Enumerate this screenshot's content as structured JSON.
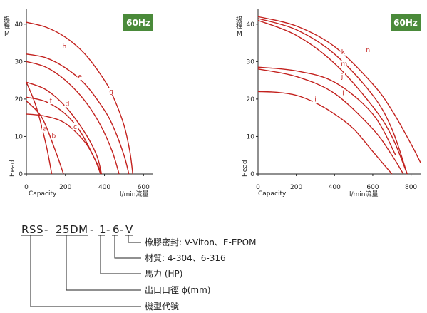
{
  "chart_data": [
    {
      "type": "line",
      "badge": "60Hz",
      "ylabel_cjk": "揚程",
      "ylabel_unit": "M",
      "ylabel": "Head",
      "xlabel": "Capacity",
      "xunit": "l/min流量",
      "xlim": [
        0,
        650
      ],
      "ylim": [
        0,
        43
      ],
      "xticks": [
        0,
        200,
        400,
        600
      ],
      "yticks": [
        0,
        10,
        20,
        30,
        40
      ],
      "series": [
        {
          "name": "h",
          "label_at": [
            195,
            33.5
          ],
          "x": [
            0,
            100,
            200,
            300,
            400,
            450,
            500,
            530,
            545
          ],
          "y": [
            40.5,
            39.2,
            36.5,
            32,
            25,
            20,
            13,
            6,
            0
          ]
        },
        {
          "name": "g",
          "label_at": [
            435,
            21.5
          ],
          "x": [
            0,
            100,
            200,
            300,
            400,
            450,
            500,
            525
          ],
          "y": [
            32,
            31,
            28.3,
            24,
            17,
            12,
            5,
            0
          ]
        },
        {
          "name": "e",
          "label_at": [
            275,
            25.5
          ],
          "x": [
            0,
            100,
            200,
            300,
            380,
            440,
            475
          ],
          "y": [
            30,
            28.5,
            25,
            19.5,
            13,
            6,
            0
          ]
        },
        {
          "name": "d",
          "label_at": [
            210,
            18.2
          ],
          "x": [
            0,
            100,
            200,
            300,
            360,
            385
          ],
          "y": [
            24.5,
            22.5,
            18,
            11,
            5,
            0
          ]
        },
        {
          "name": "f",
          "label_at": [
            125,
            19.0
          ],
          "x": [
            0,
            100,
            200,
            280,
            350,
            380
          ],
          "y": [
            20.5,
            19.3,
            16,
            11,
            4,
            0
          ]
        },
        {
          "name": "c",
          "label_at": [
            250,
            12.0
          ],
          "x": [
            0,
            100,
            200,
            300,
            360,
            385
          ],
          "y": [
            16,
            15.4,
            13.5,
            8.5,
            3,
            0
          ]
        },
        {
          "name": "a",
          "label_at": [
            95,
            11.5
          ],
          "x": [
            0,
            50,
            100,
            130
          ],
          "y": [
            24.5,
            18,
            8,
            0
          ]
        },
        {
          "name": "b",
          "label_at": [
            140,
            9.6
          ],
          "x": [
            0,
            80,
            150,
            190
          ],
          "y": [
            19.5,
            15,
            6,
            0
          ]
        }
      ]
    },
    {
      "type": "line",
      "badge": "60Hz",
      "ylabel_cjk": "揚程",
      "ylabel_unit": "M",
      "ylabel": "Head",
      "xlabel": "Capacity",
      "xunit": "l/min流量",
      "xlim": [
        0,
        850
      ],
      "ylim": [
        0,
        43
      ],
      "xticks": [
        0,
        200,
        400,
        600,
        800
      ],
      "yticks": [
        0,
        10,
        20,
        30,
        40
      ],
      "series": [
        {
          "name": "n",
          "label_at": [
            575,
            32.5
          ],
          "x": [
            0,
            200,
            400,
            600,
            700,
            800,
            850
          ],
          "y": [
            42,
            39.5,
            34,
            24,
            17,
            8,
            3
          ]
        },
        {
          "name": "k",
          "label_at": [
            445,
            32.0
          ],
          "x": [
            0,
            200,
            400,
            600,
            700,
            780
          ],
          "y": [
            41.5,
            38.5,
            32,
            21,
            12,
            0
          ]
        },
        {
          "name": "m",
          "label_at": [
            450,
            28.8
          ],
          "x": [
            0,
            200,
            400,
            600,
            700,
            780
          ],
          "y": [
            41,
            37,
            29.5,
            18,
            10,
            0
          ]
        },
        {
          "name": "j",
          "label_at": [
            440,
            25.5
          ],
          "x": [
            0,
            200,
            400,
            600,
            720
          ],
          "y": [
            28.5,
            27.5,
            24.5,
            16,
            5
          ]
        },
        {
          "name": "l",
          "label_at": [
            445,
            21.0
          ],
          "x": [
            0,
            200,
            400,
            600,
            700,
            760
          ],
          "y": [
            28,
            26,
            21.5,
            12,
            5,
            0
          ]
        },
        {
          "name": "i",
          "label_at": [
            300,
            19.3
          ],
          "x": [
            0,
            100,
            200,
            300,
            400,
            500,
            600,
            700
          ],
          "y": [
            22,
            21.8,
            21,
            19,
            16,
            12,
            6,
            0
          ]
        }
      ]
    }
  ],
  "model_code": {
    "code": "RSS-25DM-1-6-V",
    "parts": [
      "RSS",
      "-",
      "25DM",
      "-",
      "1",
      "-",
      "6",
      "-",
      "V"
    ],
    "legend": [
      "橡膠密封: V-Viton、E-EPOM",
      "材質: 4-304、6-316",
      "馬力 (HP)",
      "出口口徑 ϕ(mm)",
      "機型代號"
    ]
  },
  "colors": {
    "curve": "#c3211e",
    "badge": "#4a8a3a",
    "axis": "#222222"
  }
}
